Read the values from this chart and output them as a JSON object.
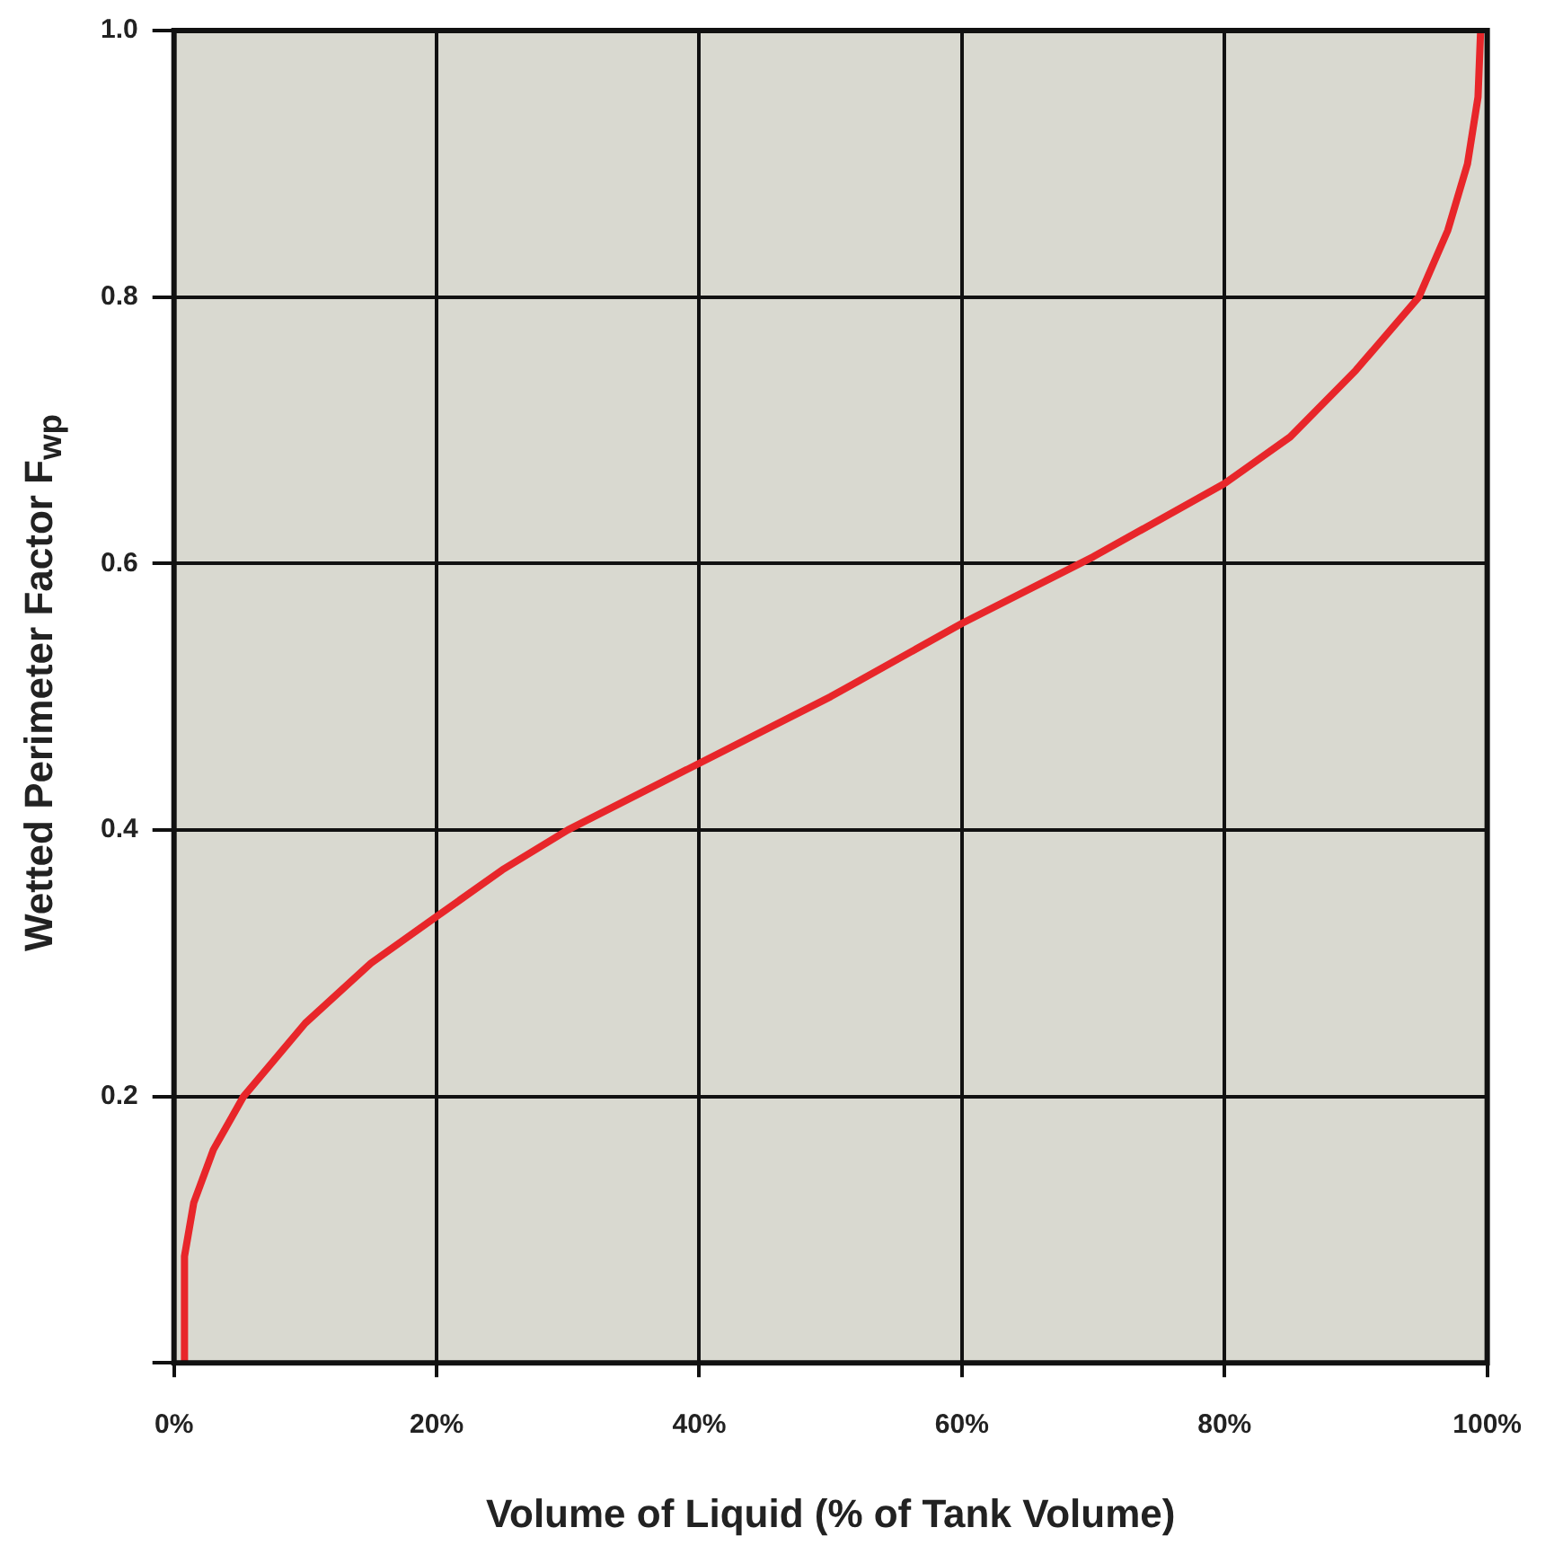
{
  "chart_data": {
    "type": "line",
    "xlabel": "Volume of Liquid (% of Tank Volume)",
    "ylabel": "Wetted Perimeter Factor F$_{wp}$",
    "x": [
      0.8,
      0.8,
      1.5,
      3,
      5.3,
      10,
      15,
      20,
      25,
      30,
      40,
      50,
      60,
      70,
      80,
      85,
      90,
      94.8,
      97,
      98.5,
      99.3,
      99.5
    ],
    "series": [
      {
        "color": "#e8262a",
        "values": [
          0,
          0.08,
          0.12,
          0.16,
          0.2,
          0.255,
          0.3,
          0.335,
          0.37,
          0.4,
          0.45,
          0.5,
          0.555,
          0.605,
          0.66,
          0.695,
          0.745,
          0.8,
          0.85,
          0.9,
          0.95,
          1.0
        ]
      }
    ],
    "xlim": [
      0,
      100
    ],
    "ylim": [
      0,
      1
    ],
    "xticks": [
      {
        "value": 0,
        "label": "0%"
      },
      {
        "value": 20,
        "label": "20%"
      },
      {
        "value": 40,
        "label": "40%"
      },
      {
        "value": 60,
        "label": "60%"
      },
      {
        "value": 80,
        "label": "80%"
      },
      {
        "value": 100,
        "label": "100%"
      }
    ],
    "yticks": [
      {
        "value": 0,
        "label": null
      },
      0.2,
      0.4,
      0.6,
      0.8,
      {
        "value": 1,
        "label": "1.0"
      }
    ],
    "grid": true,
    "legend": false,
    "marker": "none",
    "line_style": "solid"
  }
}
